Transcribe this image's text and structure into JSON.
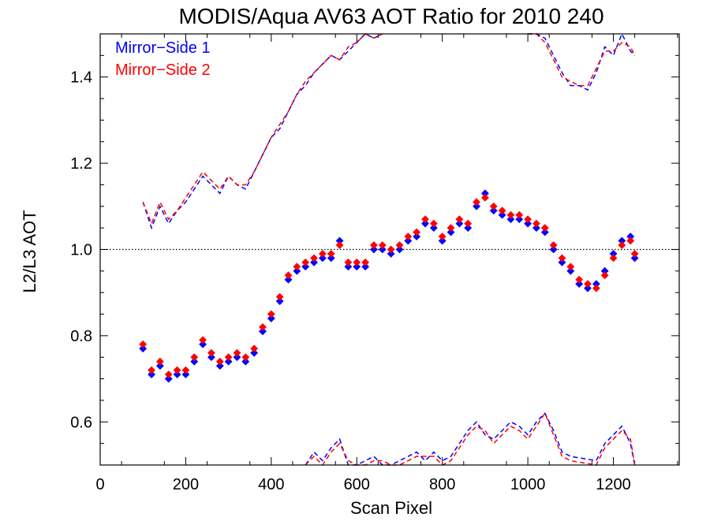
{
  "chart_data": {
    "type": "scatter",
    "title": "MODIS/Aqua AV63 AOT Ratio for 2010 240",
    "xlabel": "Scan Pixel",
    "ylabel": "L2/L3 AOT",
    "xlim": [
      0,
      1354
    ],
    "ylim": [
      0.5,
      1.5
    ],
    "x_ticks": [
      0,
      200,
      400,
      600,
      800,
      1000,
      1200
    ],
    "y_ticks": [
      0.6,
      0.8,
      1.0,
      1.2,
      1.4
    ],
    "x_tick_labels": [
      "0",
      "200",
      "400",
      "600",
      "800",
      "1000",
      "1200"
    ],
    "y_tick_labels": [
      "0.6",
      "0.8",
      "1.0",
      "1.2",
      "1.4"
    ],
    "reference_line": 1.0,
    "legend_position": "top-left",
    "series": [
      {
        "name": "Mirror−Side 1",
        "color": "#0000ff",
        "marker": "diamond",
        "x": [
          100,
          120,
          140,
          160,
          180,
          200,
          220,
          240,
          260,
          280,
          300,
          320,
          340,
          360,
          380,
          400,
          420,
          440,
          460,
          480,
          500,
          520,
          540,
          560,
          580,
          600,
          620,
          640,
          660,
          680,
          700,
          720,
          740,
          760,
          780,
          800,
          820,
          840,
          860,
          880,
          900,
          920,
          940,
          960,
          980,
          1000,
          1020,
          1040,
          1060,
          1080,
          1100,
          1120,
          1140,
          1160,
          1180,
          1200,
          1220,
          1240,
          1250
        ],
        "y": [
          0.77,
          0.71,
          0.73,
          0.7,
          0.71,
          0.71,
          0.74,
          0.78,
          0.75,
          0.73,
          0.74,
          0.75,
          0.74,
          0.76,
          0.81,
          0.84,
          0.88,
          0.93,
          0.95,
          0.96,
          0.97,
          0.98,
          0.98,
          1.02,
          0.96,
          0.96,
          0.96,
          1.0,
          1.0,
          0.99,
          1.0,
          1.02,
          1.03,
          1.06,
          1.05,
          1.02,
          1.04,
          1.06,
          1.05,
          1.1,
          1.13,
          1.09,
          1.08,
          1.07,
          1.07,
          1.06,
          1.05,
          1.04,
          1.0,
          0.97,
          0.95,
          0.92,
          0.91,
          0.92,
          0.95,
          0.99,
          1.02,
          1.03,
          0.98
        ]
      },
      {
        "name": "Mirror−Side 2",
        "color": "#ff0000",
        "marker": "diamond",
        "x": [
          100,
          120,
          140,
          160,
          180,
          200,
          220,
          240,
          260,
          280,
          300,
          320,
          340,
          360,
          380,
          400,
          420,
          440,
          460,
          480,
          500,
          520,
          540,
          560,
          580,
          600,
          620,
          640,
          660,
          680,
          700,
          720,
          740,
          760,
          780,
          800,
          820,
          840,
          860,
          880,
          900,
          920,
          940,
          960,
          980,
          1000,
          1020,
          1040,
          1060,
          1080,
          1100,
          1120,
          1140,
          1160,
          1180,
          1200,
          1220,
          1240,
          1250
        ],
        "y": [
          0.78,
          0.72,
          0.74,
          0.71,
          0.72,
          0.72,
          0.75,
          0.79,
          0.76,
          0.74,
          0.75,
          0.76,
          0.75,
          0.77,
          0.82,
          0.85,
          0.89,
          0.94,
          0.96,
          0.97,
          0.98,
          0.99,
          0.99,
          1.01,
          0.97,
          0.97,
          0.97,
          1.01,
          1.01,
          1.0,
          1.01,
          1.03,
          1.04,
          1.07,
          1.06,
          1.03,
          1.05,
          1.07,
          1.06,
          1.11,
          1.12,
          1.1,
          1.09,
          1.08,
          1.08,
          1.07,
          1.06,
          1.05,
          1.01,
          0.98,
          0.96,
          0.93,
          0.92,
          0.91,
          0.94,
          0.98,
          1.01,
          1.02,
          0.99
        ]
      }
    ],
    "dashed_lines": [
      {
        "series": "Mirror−Side 1 upper",
        "color": "#0000ff",
        "x": [
          100,
          120,
          140,
          160,
          180,
          200,
          220,
          240,
          260,
          280,
          300,
          320,
          340,
          360,
          380,
          400,
          420,
          440,
          460,
          480,
          500,
          520,
          540,
          560,
          580,
          600,
          620,
          640,
          660
        ],
        "y": [
          1.11,
          1.05,
          1.1,
          1.06,
          1.09,
          1.11,
          1.14,
          1.17,
          1.15,
          1.13,
          1.17,
          1.15,
          1.14,
          1.18,
          1.22,
          1.26,
          1.28,
          1.32,
          1.36,
          1.38,
          1.41,
          1.43,
          1.45,
          1.44,
          1.46,
          1.48,
          1.5,
          1.49,
          1.5
        ]
      },
      {
        "series": "Mirror−Side 2 upper",
        "color": "#ff0000",
        "x": [
          100,
          120,
          140,
          160,
          180,
          200,
          220,
          240,
          260,
          280,
          300,
          320,
          340,
          360,
          380,
          400,
          420,
          440,
          460,
          480,
          500,
          520,
          540,
          560,
          580,
          600,
          620,
          640,
          660
        ],
        "y": [
          1.11,
          1.06,
          1.11,
          1.07,
          1.09,
          1.12,
          1.15,
          1.18,
          1.16,
          1.14,
          1.17,
          1.15,
          1.15,
          1.18,
          1.22,
          1.26,
          1.29,
          1.32,
          1.36,
          1.39,
          1.41,
          1.43,
          1.45,
          1.44,
          1.47,
          1.48,
          1.5,
          1.49,
          1.5
        ]
      },
      {
        "series": "Mirror−Side 1 upper right",
        "color": "#0000ff",
        "x": [
          1000,
          1020,
          1040,
          1060,
          1080,
          1100,
          1120,
          1140,
          1160,
          1180,
          1200,
          1220,
          1240,
          1250
        ],
        "y": [
          1.5,
          1.5,
          1.49,
          1.45,
          1.41,
          1.38,
          1.38,
          1.37,
          1.41,
          1.47,
          1.45,
          1.5,
          1.46,
          1.45
        ]
      },
      {
        "series": "Mirror−Side 2 upper right",
        "color": "#ff0000",
        "x": [
          1000,
          1020,
          1040,
          1060,
          1080,
          1100,
          1120,
          1140,
          1160,
          1180,
          1200,
          1220,
          1240,
          1250
        ],
        "y": [
          1.5,
          1.5,
          1.48,
          1.44,
          1.4,
          1.39,
          1.38,
          1.38,
          1.42,
          1.46,
          1.46,
          1.48,
          1.47,
          1.45
        ]
      },
      {
        "series": "Mirror−Side 1 lower",
        "color": "#0000ff",
        "x": [
          480,
          500,
          520,
          540,
          560,
          580,
          600,
          620,
          640,
          660,
          680,
          700,
          720,
          740,
          760,
          780,
          800,
          820,
          840,
          860,
          880,
          900,
          920,
          940,
          960,
          980,
          1000,
          1020,
          1040,
          1060,
          1080,
          1100,
          1160,
          1180,
          1200,
          1220,
          1240,
          1250
        ],
        "y": [
          0.5,
          0.53,
          0.51,
          0.54,
          0.56,
          0.5,
          0.5,
          0.51,
          0.52,
          0.5,
          0.5,
          0.51,
          0.52,
          0.53,
          0.51,
          0.53,
          0.51,
          0.52,
          0.55,
          0.58,
          0.6,
          0.57,
          0.56,
          0.58,
          0.6,
          0.59,
          0.57,
          0.6,
          0.62,
          0.58,
          0.53,
          0.52,
          0.51,
          0.55,
          0.57,
          0.59,
          0.55,
          0.5
        ]
      },
      {
        "series": "Mirror−Side 2 lower",
        "color": "#ff0000",
        "x": [
          480,
          500,
          520,
          540,
          560,
          580,
          600,
          620,
          640,
          660,
          680,
          700,
          720,
          740,
          760,
          780,
          800,
          820,
          840,
          860,
          880,
          900,
          920,
          940,
          960,
          980,
          1000,
          1020,
          1040,
          1060,
          1080,
          1100,
          1160,
          1180,
          1200,
          1220,
          1240,
          1250
        ],
        "y": [
          0.5,
          0.52,
          0.5,
          0.53,
          0.55,
          0.51,
          0.5,
          0.5,
          0.51,
          0.51,
          0.5,
          0.5,
          0.51,
          0.52,
          0.52,
          0.52,
          0.5,
          0.51,
          0.54,
          0.57,
          0.59,
          0.58,
          0.55,
          0.57,
          0.59,
          0.58,
          0.56,
          0.59,
          0.62,
          0.57,
          0.52,
          0.51,
          0.5,
          0.54,
          0.56,
          0.58,
          0.56,
          0.5
        ]
      }
    ]
  }
}
